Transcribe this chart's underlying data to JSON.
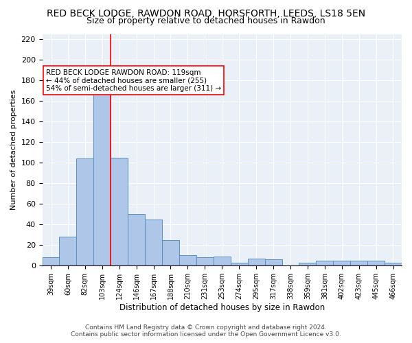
{
  "title": "RED BECK LODGE, RAWDON ROAD, HORSFORTH, LEEDS, LS18 5EN",
  "subtitle": "Size of property relative to detached houses in Rawdon",
  "xlabel": "Distribution of detached houses by size in Rawdon",
  "ylabel": "Number of detached properties",
  "categories": [
    "39sqm",
    "60sqm",
    "82sqm",
    "103sqm",
    "124sqm",
    "146sqm",
    "167sqm",
    "188sqm",
    "210sqm",
    "231sqm",
    "253sqm",
    "274sqm",
    "295sqm",
    "317sqm",
    "338sqm",
    "359sqm",
    "381sqm",
    "402sqm",
    "423sqm",
    "445sqm",
    "466sqm"
  ],
  "values": [
    8,
    28,
    104,
    171,
    105,
    50,
    45,
    25,
    10,
    8,
    9,
    3,
    7,
    6,
    0,
    3,
    5,
    5,
    5,
    5,
    3
  ],
  "bar_color": "#aec6e8",
  "bar_edge_color": "#5a8fc0",
  "bar_width": 1.0,
  "vline_x": 4,
  "vline_color": "red",
  "annotation_text": "RED BECK LODGE RAWDON ROAD: 119sqm\n← 44% of detached houses are smaller (255)\n54% of semi-detached houses are larger (311) →",
  "annotation_box_color": "white",
  "annotation_box_edgecolor": "red",
  "ylim": [
    0,
    225
  ],
  "yticks": [
    0,
    20,
    40,
    60,
    80,
    100,
    120,
    140,
    160,
    180,
    200,
    220
  ],
  "background_color": "#eaf0f8",
  "grid_color": "white",
  "footer_line1": "Contains HM Land Registry data © Crown copyright and database right 2024.",
  "footer_line2": "Contains public sector information licensed under the Open Government Licence v3.0.",
  "title_fontsize": 10,
  "subtitle_fontsize": 9
}
